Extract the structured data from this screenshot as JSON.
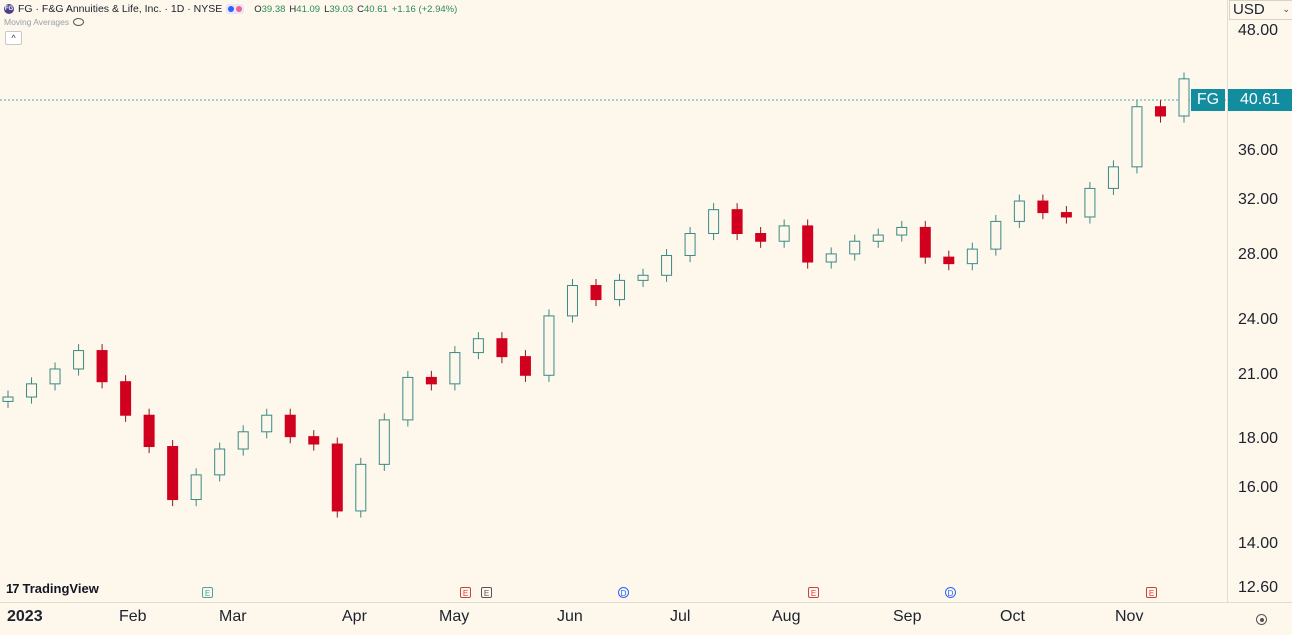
{
  "header": {
    "symbol_logo": "FG",
    "title": "FG · F&G Annuities & Life, Inc. · 1D · NYSE",
    "ohlc": [
      {
        "k": "O",
        "v": "39.38"
      },
      {
        "k": "H",
        "v": "41.09"
      },
      {
        "k": "L",
        "v": "39.03"
      },
      {
        "k": "C",
        "v": "40.61"
      },
      {
        "k": "",
        "v": "+1.16 (+2.94%)"
      }
    ],
    "indicator_label": "Moving Averages",
    "collapse_label": "^"
  },
  "price_axis": {
    "currency": "USD",
    "labels": [
      "48.00",
      "40.61",
      "36.00",
      "32.00",
      "28.00",
      "24.00",
      "21.00",
      "18.00",
      "16.00",
      "14.00",
      "12.60"
    ]
  },
  "last_price": {
    "symbol": "FG",
    "value": "40.61",
    "color": "#128da0"
  },
  "time_axis": {
    "labels": [
      "2023",
      "Feb",
      "Mar",
      "Apr",
      "May",
      "Jun",
      "Jul",
      "Aug",
      "Sep",
      "Oct",
      "Nov"
    ]
  },
  "branding": {
    "name": "TradingView",
    "mark": "17"
  },
  "events": [
    {
      "type": "earnings",
      "label": "E",
      "color": "#4aa3a3"
    },
    {
      "type": "earnings",
      "label": "E",
      "color": "#d04040"
    },
    {
      "type": "earnings",
      "label": "E",
      "color": "#555555"
    },
    {
      "type": "dividend",
      "label": "D",
      "color": "#2962ff"
    },
    {
      "type": "earnings",
      "label": "E",
      "color": "#d04040"
    },
    {
      "type": "dividend",
      "label": "D",
      "color": "#2962ff"
    },
    {
      "type": "earnings",
      "label": "E",
      "color": "#d04040"
    }
  ],
  "colors": {
    "up": "#26a69a",
    "down": "#d1001f",
    "background": "#fdf7ec"
  },
  "chart_data": {
    "type": "candlestick",
    "symbol": "FG",
    "scale": "log",
    "ylim": [
      12.6,
      50
    ],
    "series": [
      {
        "name": "FG",
        "values": [
          19.6,
          20.2,
          20.9,
          21.8,
          20.3,
          18.8,
          17.5,
          15.5,
          16.4,
          17.4,
          18.1,
          18.8,
          17.9,
          17.6,
          15.1,
          16.8,
          18.6,
          20.5,
          20.2,
          21.7,
          22.4,
          21.5,
          20.6,
          23.6,
          25.3,
          24.5,
          25.6,
          25.9,
          27.1,
          28.5,
          30.1,
          28.5,
          28.0,
          29.0,
          26.7,
          27.2,
          28.0,
          28.4,
          28.9,
          27.0,
          26.6,
          27.5,
          29.3,
          30.7,
          29.9,
          29.6,
          31.6,
          33.2,
          38.1,
          37.3,
          40.61
        ]
      }
    ]
  }
}
